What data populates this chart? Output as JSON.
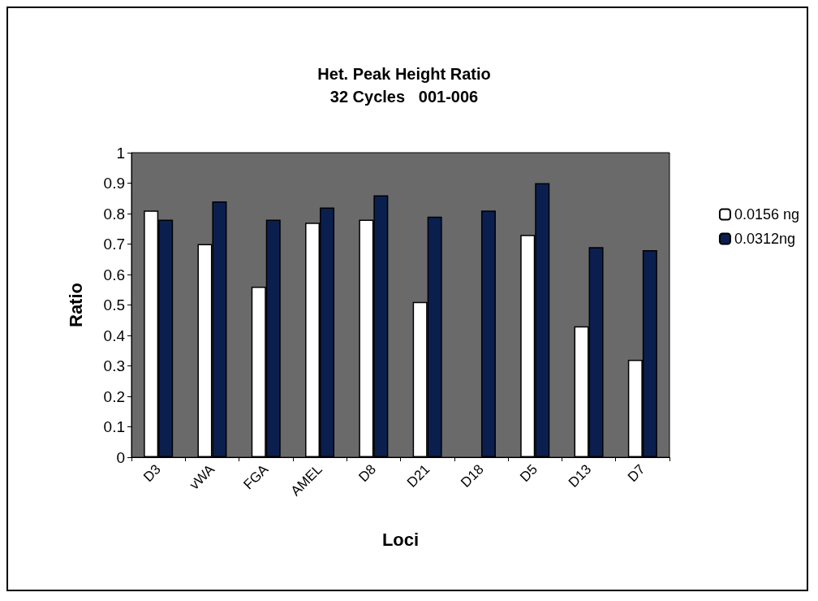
{
  "chart_data": {
    "type": "bar",
    "title": "Het. Peak Height Ratio",
    "subtitle": "32 Cycles   001-006",
    "xlabel": "Loci",
    "ylabel": "Ratio",
    "categories": [
      "D3",
      "vWA",
      "FGA",
      "AMEL",
      "D8",
      "D21",
      "D18",
      "D5",
      "D13",
      "D7"
    ],
    "series": [
      {
        "name": "0.0156 ng",
        "color": "#ffffff",
        "values": [
          0.81,
          0.7,
          0.56,
          0.77,
          0.78,
          0.51,
          null,
          0.73,
          0.43,
          0.32
        ]
      },
      {
        "name": "0.0312ng",
        "color": "#0b1f4f",
        "values": [
          0.78,
          0.84,
          0.78,
          0.82,
          0.86,
          0.79,
          0.81,
          0.9,
          0.69,
          0.68
        ]
      }
    ],
    "ylim": [
      0,
      1
    ],
    "yticks": [
      0,
      0.1,
      0.2,
      0.3,
      0.4,
      0.5,
      0.6,
      0.7,
      0.8,
      0.9,
      1
    ],
    "grid": false,
    "legend": "right"
  }
}
